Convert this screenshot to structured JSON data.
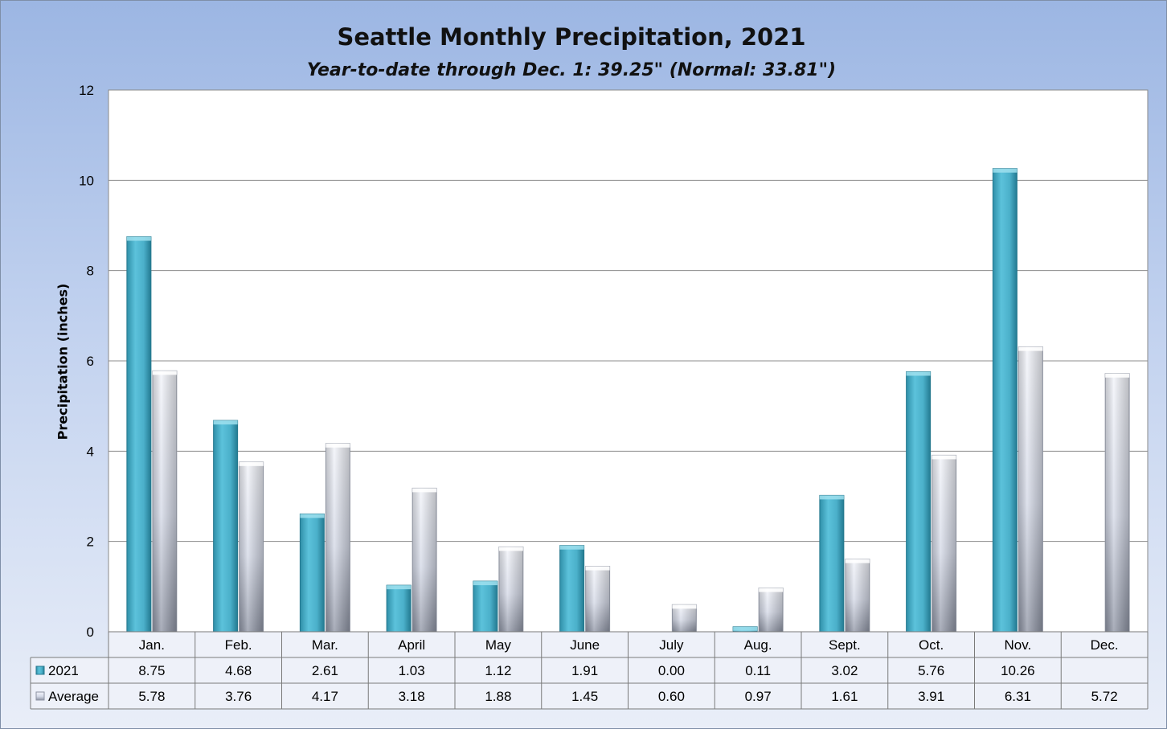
{
  "chart_data": {
    "type": "bar",
    "title": "Seattle Monthly Precipitation, 2021",
    "subtitle": "Year-to-date through Dec. 1: 39.25\" (Normal: 33.81\")",
    "ylabel": "Precipitation (inches)",
    "ylim": [
      0,
      12
    ],
    "yticks": [
      "0",
      "2",
      "4",
      "6",
      "8",
      "10",
      "12"
    ],
    "grid": true,
    "legend": "data-table-left",
    "categories": [
      "Jan.",
      "Feb.",
      "Mar.",
      "April",
      "May",
      "June",
      "July",
      "Aug.",
      "Sept.",
      "Oct.",
      "Nov.",
      "Dec."
    ],
    "series": [
      {
        "name": "2021",
        "color": "#4bacc6",
        "values": [
          8.75,
          4.68,
          2.61,
          1.03,
          1.12,
          1.91,
          0.0,
          0.11,
          3.02,
          5.76,
          10.26,
          null
        ],
        "labels": [
          "8.75",
          "4.68",
          "2.61",
          "1.03",
          "1.12",
          "1.91",
          "0.00",
          "0.11",
          "3.02",
          "5.76",
          "10.26",
          ""
        ]
      },
      {
        "name": "Average",
        "color": "#c7cedd",
        "values": [
          5.78,
          3.76,
          4.17,
          3.18,
          1.88,
          1.45,
          0.6,
          0.97,
          1.61,
          3.91,
          6.31,
          5.72
        ],
        "labels": [
          "5.78",
          "3.76",
          "4.17",
          "3.18",
          "1.88",
          "1.45",
          "0.60",
          "0.97",
          "1.61",
          "3.91",
          "6.31",
          "5.72"
        ]
      }
    ]
  }
}
